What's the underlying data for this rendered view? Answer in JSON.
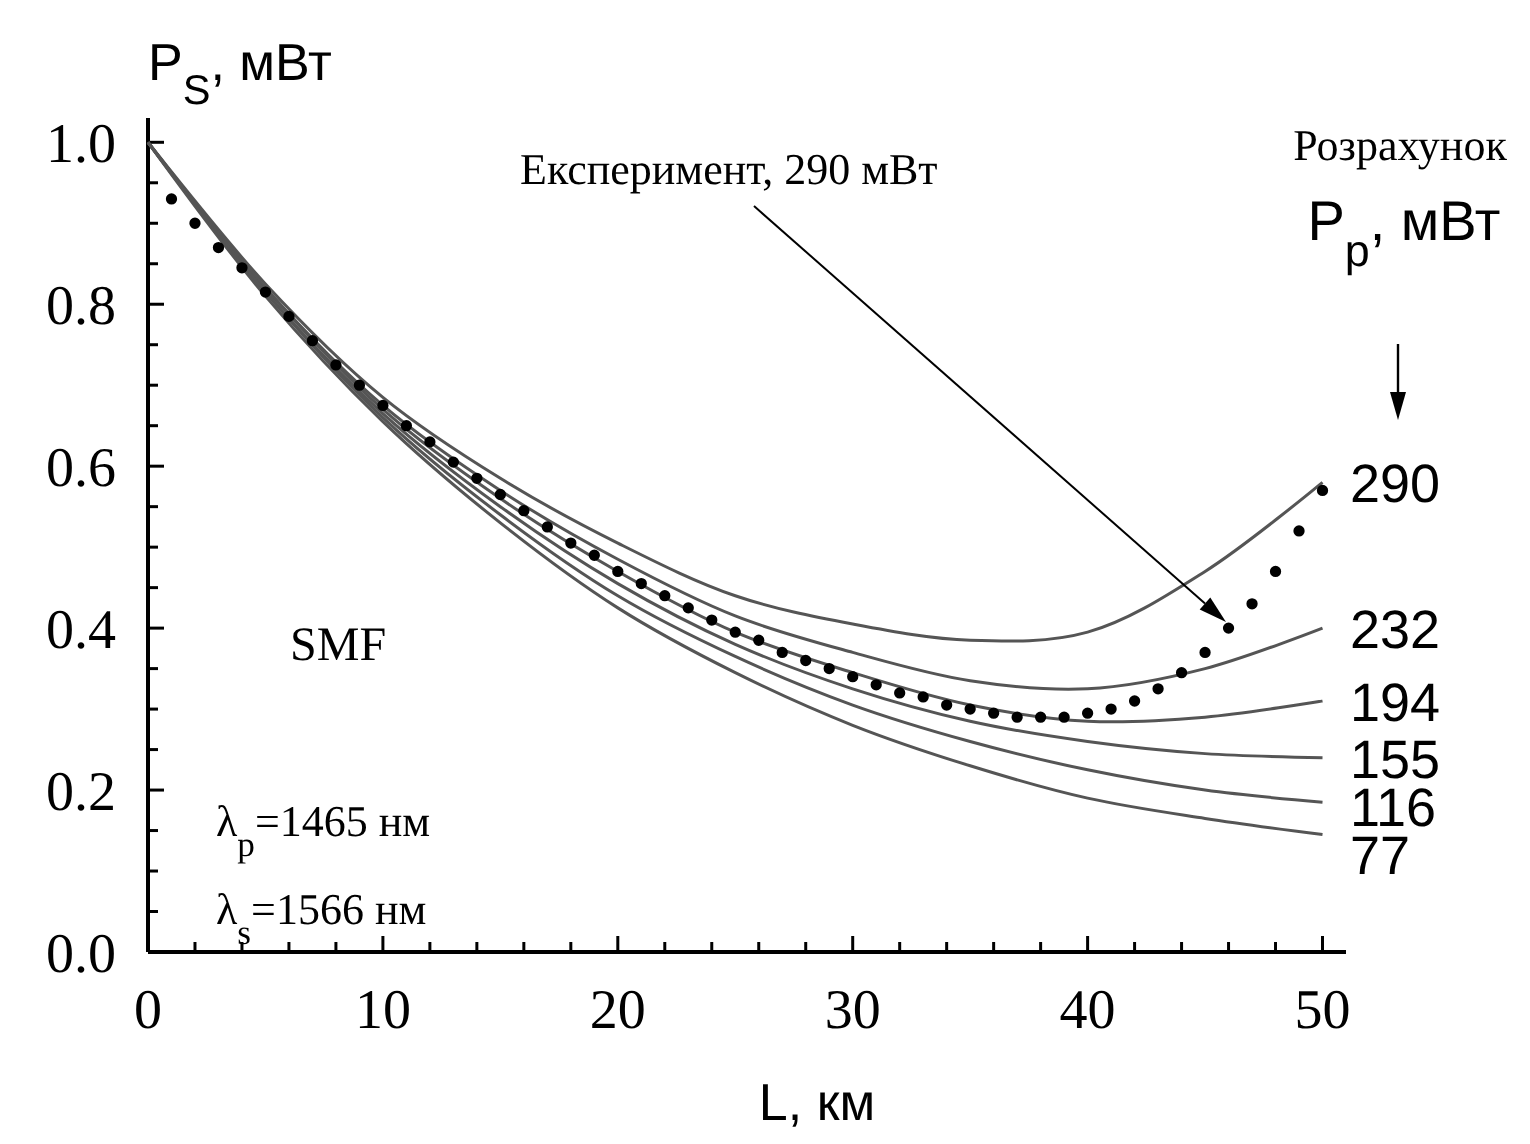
{
  "chart_data": {
    "type": "line",
    "xlabel": "L, км",
    "ylabel": "P$_{S}$, мВт",
    "xlim": [
      0,
      51
    ],
    "ylim": [
      0,
      1.03
    ],
    "xticks": [
      0,
      {
        "value": 2,
        "label": null
      },
      {
        "value": 4,
        "label": null
      },
      {
        "value": 6,
        "label": null
      },
      {
        "value": 8,
        "label": null
      },
      10,
      {
        "value": 12,
        "label": null
      },
      {
        "value": 14,
        "label": null
      },
      {
        "value": 16,
        "label": null
      },
      {
        "value": 18,
        "label": null
      },
      20,
      {
        "value": 22,
        "label": null
      },
      {
        "value": 24,
        "label": null
      },
      {
        "value": 26,
        "label": null
      },
      {
        "value": 28,
        "label": null
      },
      30,
      {
        "value": 32,
        "label": null
      },
      {
        "value": 34,
        "label": null
      },
      {
        "value": 36,
        "label": null
      },
      {
        "value": 38,
        "label": null
      },
      40,
      {
        "value": 42,
        "label": null
      },
      {
        "value": 44,
        "label": null
      },
      {
        "value": 46,
        "label": null
      },
      {
        "value": 48,
        "label": null
      },
      50
    ],
    "yticks": [
      {
        "value": 0,
        "label": "0.0"
      },
      {
        "value": 0.05,
        "label": null
      },
      {
        "value": 0.1,
        "label": null
      },
      {
        "value": 0.15,
        "label": null
      },
      0.2,
      {
        "value": 0.25,
        "label": null
      },
      {
        "value": 0.3,
        "label": null
      },
      {
        "value": 0.35,
        "label": null
      },
      0.4,
      {
        "value": 0.45,
        "label": null
      },
      {
        "value": 0.5,
        "label": null
      },
      {
        "value": 0.55,
        "label": null
      },
      0.6,
      {
        "value": 0.65,
        "label": null
      },
      {
        "value": 0.7,
        "label": null
      },
      {
        "value": 0.75,
        "label": null
      },
      0.8,
      {
        "value": 0.85,
        "label": null
      },
      {
        "value": 0.9,
        "label": null
      },
      {
        "value": 0.95,
        "label": null
      },
      {
        "value": 1,
        "label": "1.0"
      }
    ],
    "x": [
      0,
      5,
      10,
      15,
      20,
      25,
      30,
      35,
      40,
      45,
      50
    ],
    "marker": "none",
    "line_style": "solid",
    "series": [
      {
        "name": "290",
        "color": "#555555",
        "values": [
          1,
          0.825,
          0.685,
          0.585,
          0.505,
          0.44,
          0.405,
          0.385,
          0.395,
          0.47,
          0.58
        ]
      },
      {
        "name": "232",
        "color": "#555555",
        "values": [
          1,
          0.82,
          0.675,
          0.57,
          0.485,
          0.415,
          0.37,
          0.335,
          0.325,
          0.35,
          0.4
        ]
      },
      {
        "name": "194",
        "color": "#555555",
        "values": [
          1,
          0.82,
          0.67,
          0.56,
          0.47,
          0.395,
          0.345,
          0.305,
          0.285,
          0.29,
          0.31
        ]
      },
      {
        "name": "155",
        "color": "#555555",
        "values": [
          1,
          0.815,
          0.665,
          0.55,
          0.455,
          0.38,
          0.325,
          0.285,
          0.26,
          0.245,
          0.24
        ]
      },
      {
        "name": "116",
        "color": "#555555",
        "values": [
          1,
          0.815,
          0.66,
          0.54,
          0.44,
          0.365,
          0.305,
          0.26,
          0.225,
          0.2,
          0.185
        ]
      },
      {
        "name": "77",
        "color": "#555555",
        "values": [
          1,
          0.81,
          0.655,
          0.53,
          0.425,
          0.345,
          0.28,
          0.23,
          0.19,
          0.165,
          0.145
        ]
      },
      {
        "type": "scatter",
        "marker": "circle",
        "color": "#000000",
        "x": [
          1,
          2,
          3,
          4,
          5,
          6,
          7,
          8,
          9,
          10,
          11,
          12,
          13,
          14,
          15,
          16,
          17,
          18,
          19,
          20,
          21,
          22,
          23,
          24,
          25,
          26,
          27,
          28,
          29,
          30,
          31,
          32,
          33,
          34,
          35,
          36,
          37,
          38,
          39,
          40,
          41,
          42,
          43,
          44,
          45,
          46,
          47,
          48,
          49,
          50
        ],
        "values": [
          0.93,
          0.9,
          0.87,
          0.845,
          0.815,
          0.785,
          0.755,
          0.725,
          0.7,
          0.675,
          0.65,
          0.63,
          0.605,
          0.585,
          0.565,
          0.545,
          0.525,
          0.505,
          0.49,
          0.47,
          0.455,
          0.44,
          0.425,
          0.41,
          0.395,
          0.385,
          0.37,
          0.36,
          0.35,
          0.34,
          0.33,
          0.32,
          0.315,
          0.305,
          0.3,
          0.295,
          0.29,
          0.29,
          0.29,
          0.295,
          0.3,
          0.31,
          0.325,
          0.345,
          0.37,
          0.4,
          0.43,
          0.47,
          0.52,
          0.57
        ]
      }
    ],
    "annotations": [
      "Експеримент, 290 мВт",
      "Розрахунок",
      "P$_{p}$, мВт",
      "SMF",
      "λ$_{p}$=1465  нм",
      "λ$_{s}$=1566  нм"
    ]
  }
}
